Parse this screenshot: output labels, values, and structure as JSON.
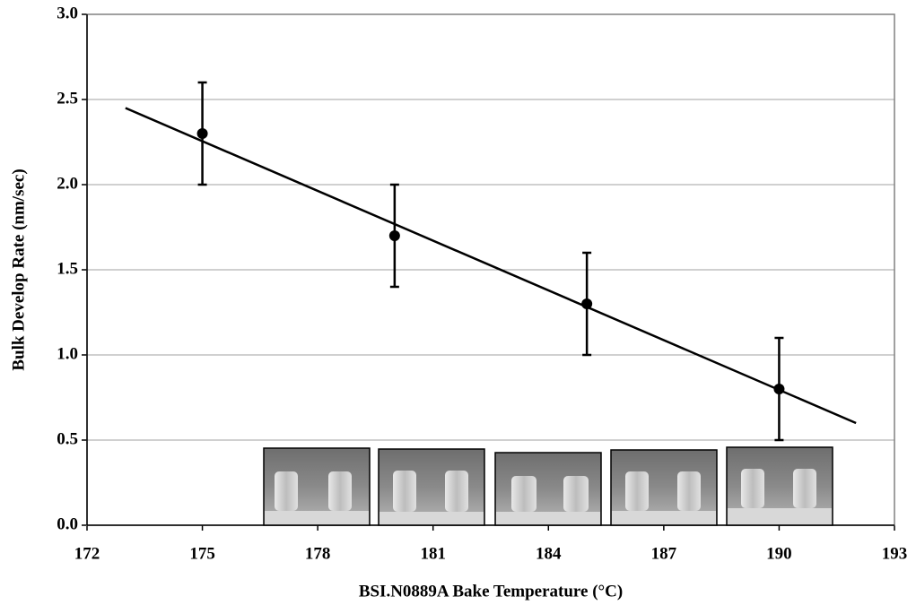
{
  "chart_data": {
    "type": "scatter",
    "x_label": "BSI.N0889A Bake Temperature (°C)",
    "y_label": "Bulk Develop Rate (nm/sec)",
    "xlim": [
      172,
      193
    ],
    "xticks": [
      172,
      175,
      178,
      181,
      184,
      187,
      190,
      193
    ],
    "ylim": [
      0,
      3
    ],
    "yticks": [
      {
        "value": 0,
        "label": "0.0"
      },
      0.5,
      {
        "value": 1,
        "label": "1.0"
      },
      1.5,
      {
        "value": 2,
        "label": "2.0"
      },
      2.5,
      {
        "value": 3,
        "label": "3.0"
      }
    ],
    "grid": true,
    "series": [
      {
        "color": "#000000",
        "x": [
          175,
          180,
          185,
          190
        ],
        "values": [
          2.3,
          1.7,
          1.3,
          0.8
        ],
        "errors": [
          0.3,
          0.3,
          0.3,
          0.3
        ]
      }
    ],
    "trend": {
      "color": "#000000",
      "x": [
        173,
        192
      ],
      "values": [
        2.45,
        0.6
      ]
    }
  }
}
